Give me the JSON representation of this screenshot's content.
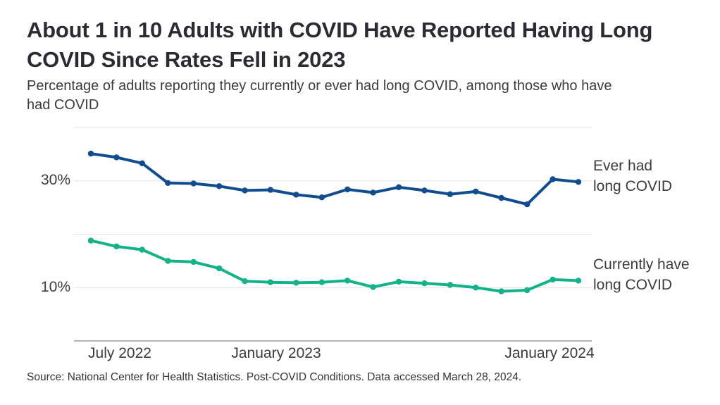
{
  "header": {
    "title_lines": [
      "About 1 in 10 Adults with COVID Have Reported Having Long",
      "COVID Since Rates Fell in 2023"
    ],
    "subtitle_lines": [
      "Percentage of adults reporting they currently or ever had long COVID, among those who have",
      "had COVID"
    ]
  },
  "chart_data": {
    "type": "line",
    "n_points": 20,
    "x_range_note": "20 evenly spaced survey waves from June 2022 to March 2024",
    "x_tick_labels": [
      "July 2022",
      "January 2023",
      "January 2024"
    ],
    "x_tick_point_index": [
      1,
      7,
      18
    ],
    "y_tick_labels": [
      "30%",
      "10%"
    ],
    "y_gridlines_pct": [
      10,
      20,
      30,
      40
    ],
    "ylim": [
      0,
      40
    ],
    "grid": true,
    "legend_position": "right-of-line-end",
    "series": [
      {
        "name": "Ever had long COVID",
        "label_lines": [
          "Ever had",
          "long COVID"
        ],
        "color": "#104d8f",
        "values": [
          35.1,
          34.4,
          33.3,
          29.6,
          29.5,
          29.0,
          28.2,
          28.3,
          27.4,
          26.9,
          28.4,
          27.8,
          28.8,
          28.2,
          27.5,
          28.0,
          26.8,
          25.6,
          30.3,
          29.8
        ]
      },
      {
        "name": "Currently have long COVID",
        "label_lines": [
          "Currently have",
          "long COVID"
        ],
        "color": "#12b388",
        "values": [
          18.8,
          17.7,
          17.1,
          15.0,
          14.8,
          13.6,
          11.2,
          11.0,
          10.9,
          11.0,
          11.3,
          10.1,
          11.1,
          10.8,
          10.5,
          10.0,
          9.3,
          9.5,
          11.5,
          11.3
        ]
      }
    ]
  },
  "colors": {
    "ever_line": "#104d8f",
    "current_line": "#12b388",
    "gridline": "#e3e3e3",
    "axis_line": "#9b9b9b",
    "title_text": "#2b2b33",
    "body_text": "#3c3c3c"
  },
  "footer": {
    "source": "Source: National Center for Health Statistics. Post-COVID Conditions. Data accessed March 28, 2024."
  }
}
